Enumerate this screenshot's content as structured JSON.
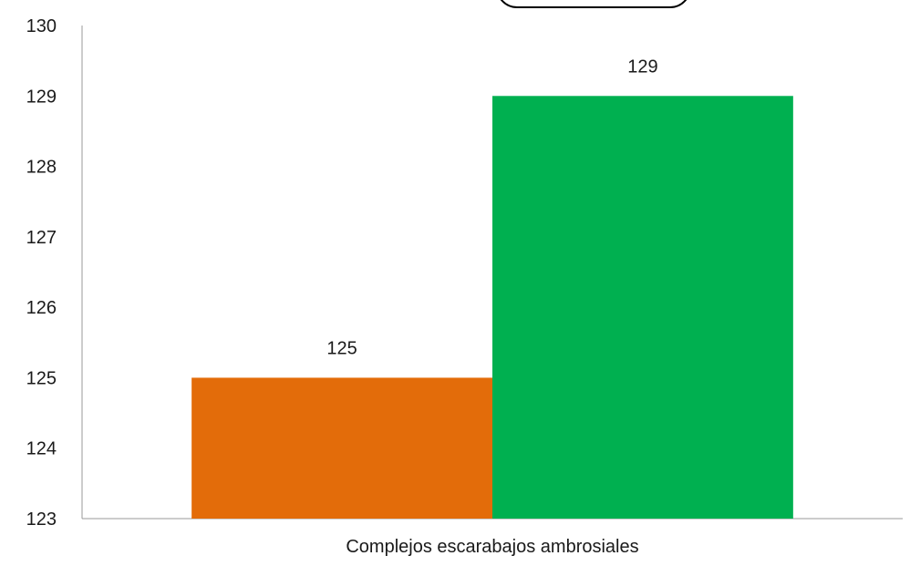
{
  "chart_data": {
    "type": "bar",
    "categories": [
      "Complejos escarabajos ambrosiales"
    ],
    "series": [
      {
        "values": [
          125
        ],
        "color": "#E36C0A"
      },
      {
        "values": [
          129
        ],
        "color": "#00B050"
      }
    ],
    "data_labels": [
      "125",
      "129"
    ],
    "ylim": [
      123,
      130
    ],
    "yticks": [
      123,
      124,
      125,
      126,
      127,
      128,
      129,
      130
    ],
    "ytick_labels": [
      "123",
      "124",
      "125",
      "126",
      "127",
      "128",
      "129",
      "130"
    ],
    "grid": false,
    "legend": "top-center (partially cropped, entries not visible)",
    "title": "",
    "xlabel": "",
    "ylabel": ""
  }
}
